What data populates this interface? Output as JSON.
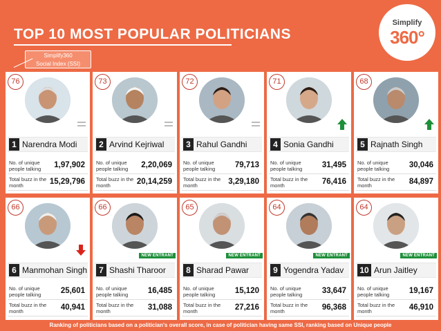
{
  "title": "TOP 10 MOST POPULAR POLITICIANS",
  "logo": {
    "line1": "Simplify",
    "line2": "360°"
  },
  "ssi_label": {
    "line1": "Simplify360",
    "line2": "Social Index (SSI)"
  },
  "labels": {
    "unique": "No. of unique people talking",
    "buzz": "Total buzz in the month",
    "new_entrant": "NEW ENTRANT"
  },
  "politicians": [
    {
      "rank": "1",
      "name": "Narendra Modi",
      "ssi": "76",
      "unique": "1,97,902",
      "buzz": "15,29,796",
      "trend": "same",
      "new_entrant": false
    },
    {
      "rank": "2",
      "name": "Arvind Kejriwal",
      "ssi": "73",
      "unique": "2,20,069",
      "buzz": "20,14,259",
      "trend": "same",
      "new_entrant": false
    },
    {
      "rank": "3",
      "name": "Rahul Gandhi",
      "ssi": "72",
      "unique": "79,713",
      "buzz": "3,29,180",
      "trend": "same",
      "new_entrant": false
    },
    {
      "rank": "4",
      "name": "Sonia Gandhi",
      "ssi": "71",
      "unique": "31,495",
      "buzz": "76,416",
      "trend": "up",
      "new_entrant": false
    },
    {
      "rank": "5",
      "name": "Rajnath Singh",
      "ssi": "68",
      "unique": "30,046",
      "buzz": "84,897",
      "trend": "up",
      "new_entrant": false
    },
    {
      "rank": "6",
      "name": "Manmohan Singh",
      "ssi": "66",
      "unique": "25,601",
      "buzz": "40,941",
      "trend": "down",
      "new_entrant": false
    },
    {
      "rank": "7",
      "name": "Shashi Tharoor",
      "ssi": "66",
      "unique": "16,485",
      "buzz": "31,088",
      "trend": "none",
      "new_entrant": true
    },
    {
      "rank": "8",
      "name": "Sharad Pawar",
      "ssi": "65",
      "unique": "15,120",
      "buzz": "27,216",
      "trend": "none",
      "new_entrant": true
    },
    {
      "rank": "9",
      "name": "Yogendra Yadav",
      "ssi": "64",
      "unique": "33,647",
      "buzz": "96,368",
      "trend": "none",
      "new_entrant": true
    },
    {
      "rank": "10",
      "name": "Arun Jaitley",
      "ssi": "64",
      "unique": "19,167",
      "buzz": "46,910",
      "trend": "none",
      "new_entrant": true
    }
  ],
  "colors": {
    "background": "#ed6a45",
    "up": "#1e8f3a",
    "down": "#d9241c",
    "new_entrant": "#1e8f3a"
  },
  "footer": "Ranking of politicians based on a politician's overall score, in case of politician having same SSI, ranking based on Unique people"
}
